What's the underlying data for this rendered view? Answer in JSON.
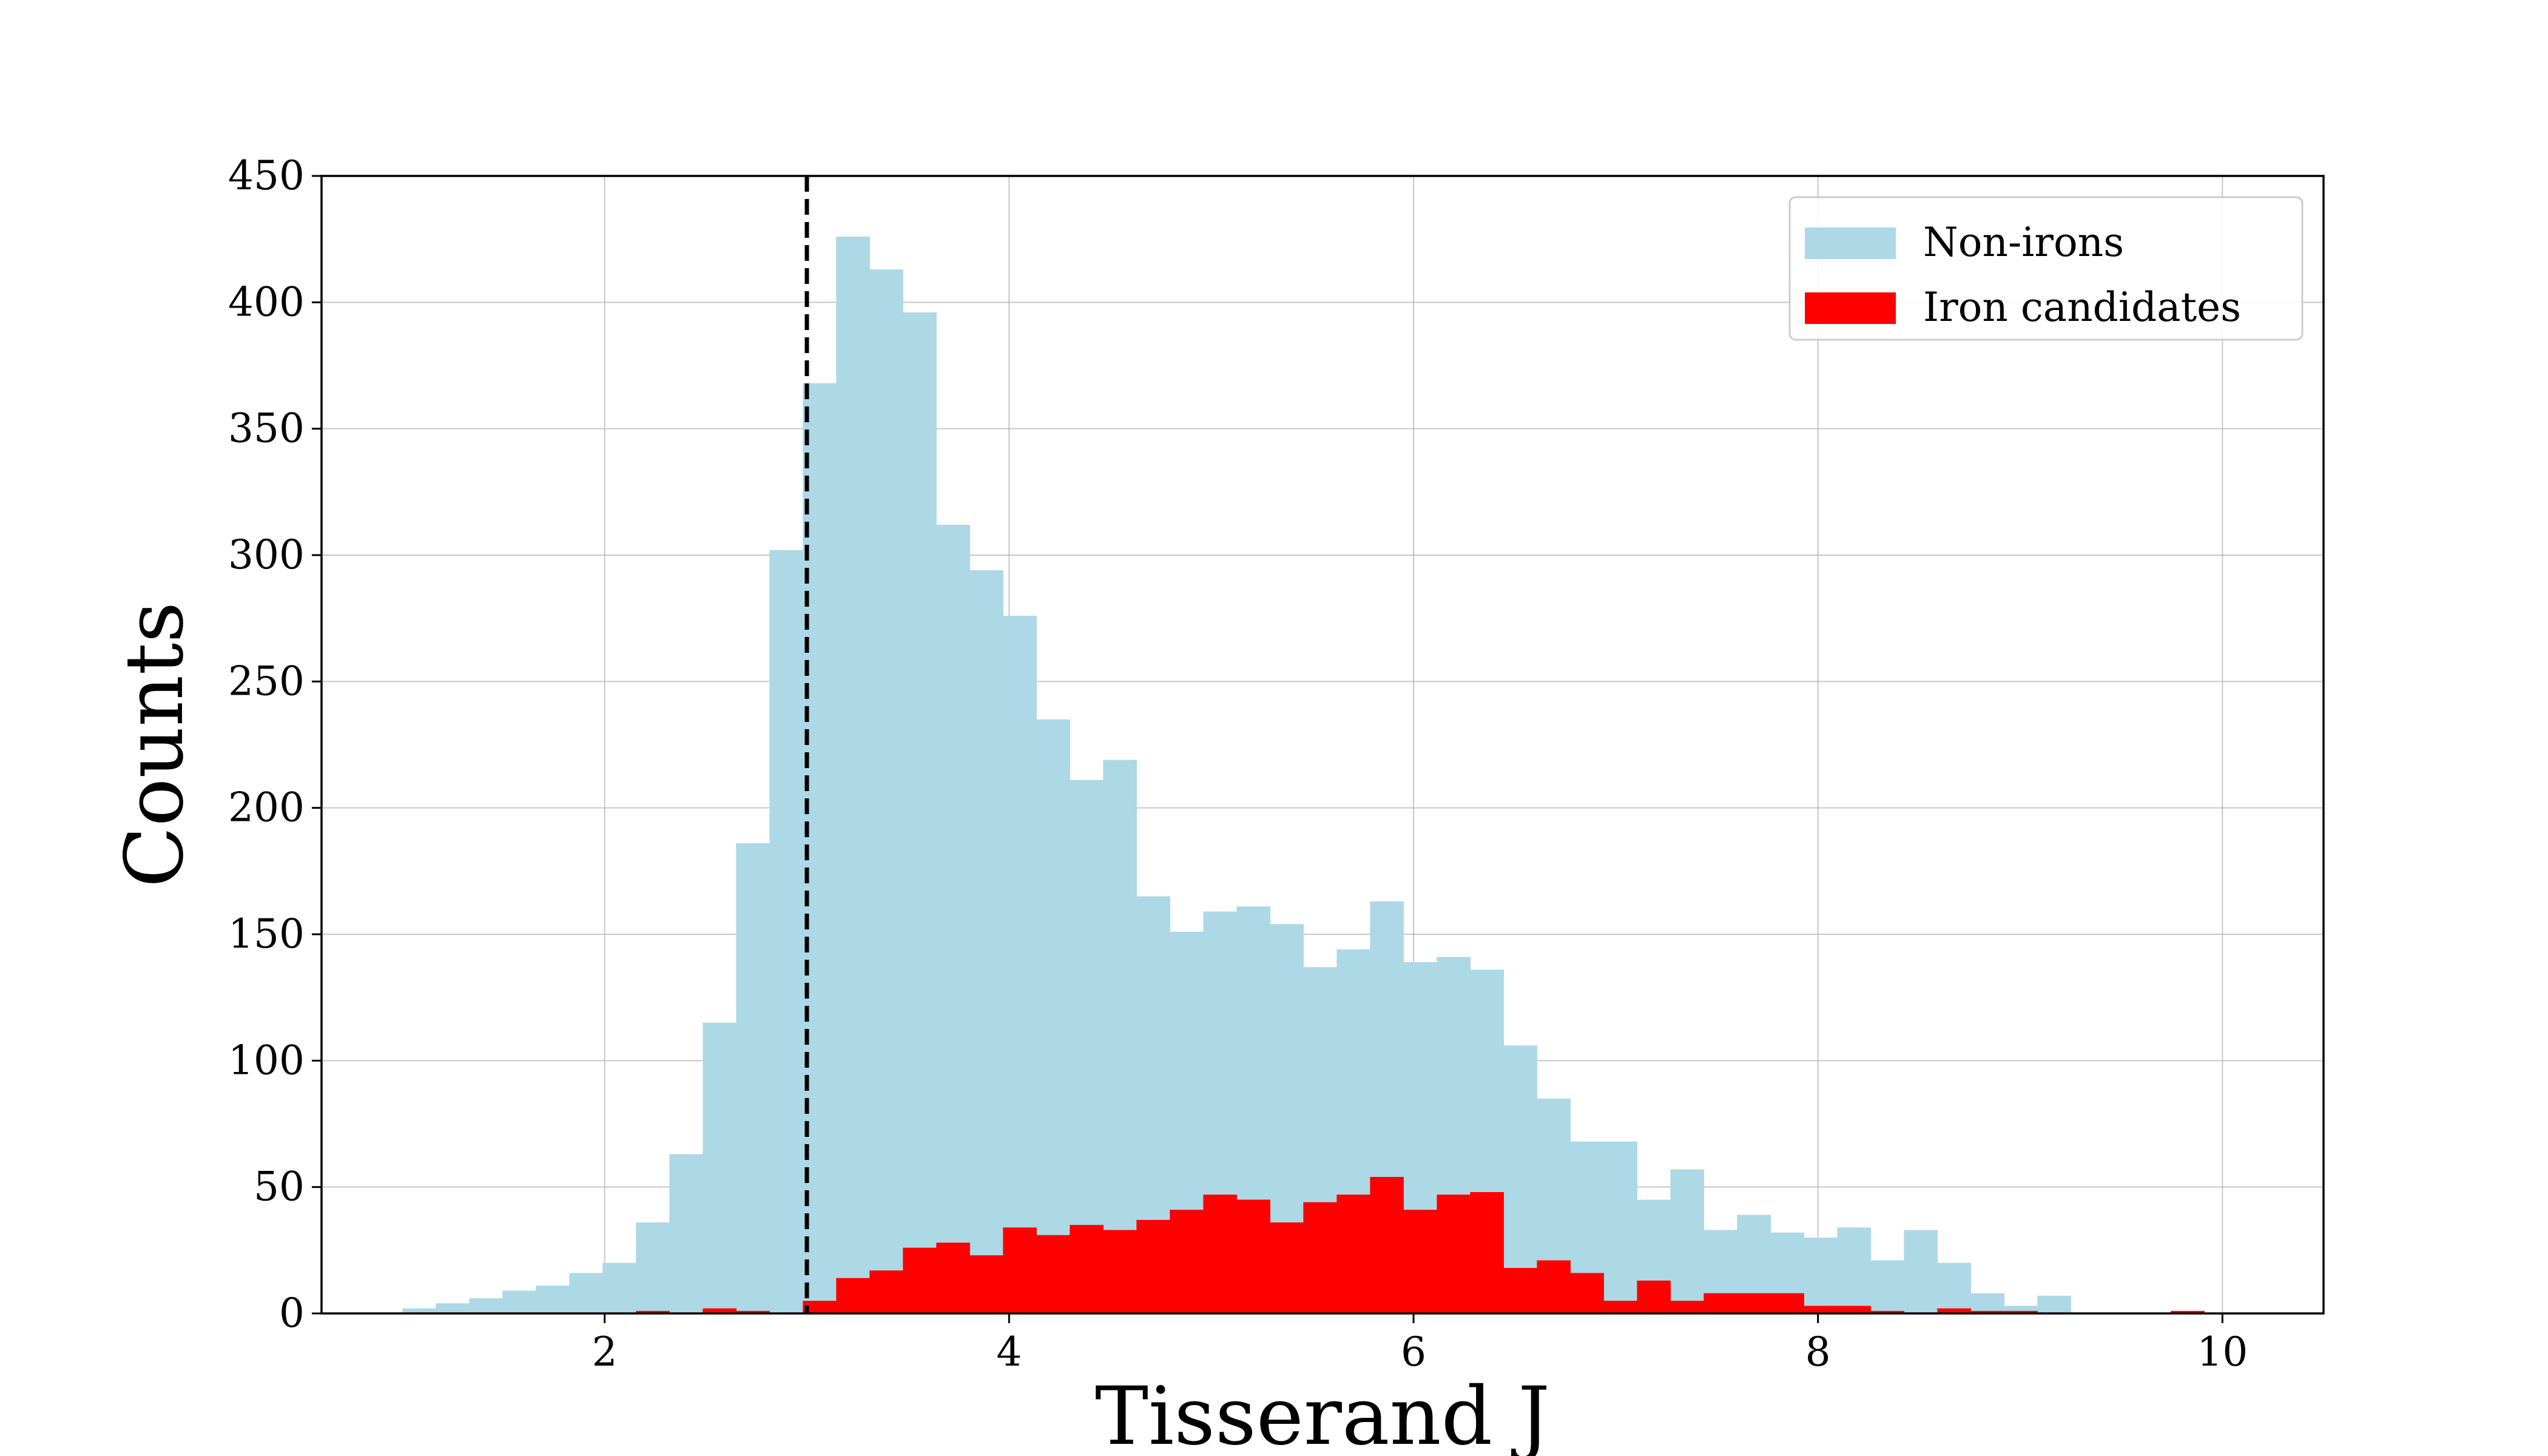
{
  "chart_data": {
    "type": "bar",
    "title": "",
    "xlabel": "Tisserand J",
    "ylabel": "Counts",
    "xlim": [
      0.6,
      10.5
    ],
    "ylim": [
      0,
      450
    ],
    "xticks": [
      "2",
      "4",
      "6",
      "8",
      "10"
    ],
    "yticks": [
      "0",
      "50",
      "100",
      "150",
      "200",
      "250",
      "300",
      "350",
      "400",
      "450"
    ],
    "grid": true,
    "legend_position": "top-right",
    "bin_start": 1.0,
    "bin_width": 0.165,
    "reference_line": {
      "x": 3.0,
      "style": "dashed",
      "color": "#000000"
    },
    "series": [
      {
        "name": "Non-irons",
        "color": "#add8e6",
        "values": [
          2,
          4,
          6,
          9,
          11,
          16,
          20,
          36,
          63,
          115,
          186,
          302,
          368,
          426,
          413,
          396,
          312,
          294,
          276,
          235,
          211,
          219,
          165,
          151,
          159,
          161,
          154,
          137,
          144,
          163,
          139,
          141,
          136,
          106,
          85,
          68,
          68,
          45,
          57,
          33,
          39,
          32,
          30,
          34,
          21,
          33,
          20,
          8,
          3,
          7,
          0,
          0,
          0,
          1,
          0,
          0
        ]
      },
      {
        "name": "Iron candidates",
        "color": "#ff0000",
        "values": [
          0,
          0,
          0,
          0,
          0,
          0,
          0,
          1,
          0,
          2,
          1,
          0,
          5,
          14,
          17,
          26,
          28,
          23,
          34,
          31,
          35,
          33,
          37,
          41,
          47,
          45,
          36,
          44,
          47,
          54,
          41,
          47,
          48,
          18,
          21,
          16,
          5,
          13,
          5,
          8,
          8,
          8,
          3,
          3,
          1,
          0,
          2,
          1,
          1,
          0,
          0,
          0,
          0,
          1,
          0,
          0
        ]
      }
    ]
  }
}
